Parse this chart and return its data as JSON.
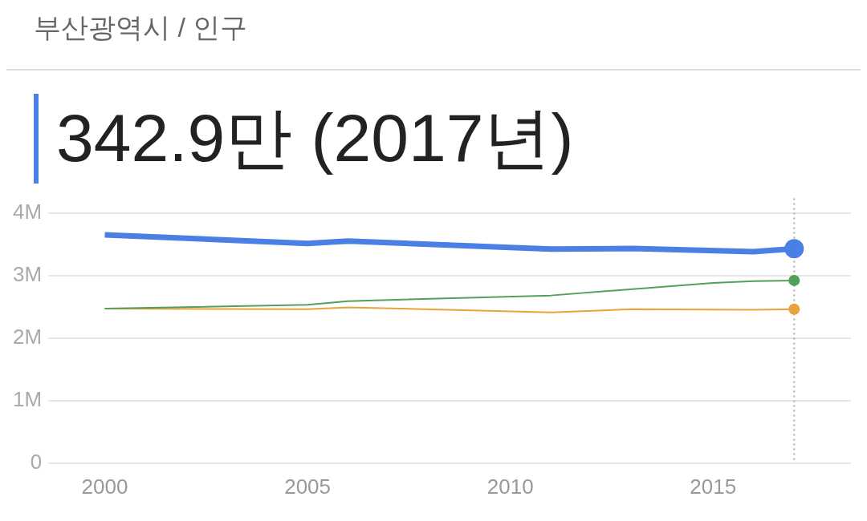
{
  "chart_data": {
    "type": "line",
    "title": "부산광역시 / 인구",
    "subtitle": "342.9만 (2017년)",
    "series": [
      {
        "color": "#4a7fe6",
        "x": [
          2000,
          2005,
          2006,
          2011,
          2013,
          2016,
          2017
        ],
        "values": [
          3650000,
          3510000,
          3550000,
          3420000,
          3430000,
          3380000,
          3429000
        ]
      },
      {
        "color": "#53a05a",
        "x": [
          2000,
          2005,
          2006,
          2011,
          2015,
          2016,
          2017
        ],
        "values": [
          2470000,
          2530000,
          2590000,
          2680000,
          2880000,
          2910000,
          2920000
        ]
      },
      {
        "color": "#e8a33a",
        "x": [
          2000,
          2005,
          2006,
          2011,
          2013,
          2016,
          2017
        ],
        "values": [
          2470000,
          2460000,
          2490000,
          2410000,
          2460000,
          2450000,
          2460000
        ]
      }
    ],
    "xlim": [
      1999.2,
      2018.4
    ],
    "xticks": [
      2000,
      2005,
      2010,
      2015
    ],
    "ylim": [
      0,
      4000000
    ],
    "yticks": [
      {
        "value": 0,
        "label": "0"
      },
      {
        "value": 1000000,
        "label": "1M"
      },
      {
        "value": 2000000,
        "label": "2M"
      },
      {
        "value": 3000000,
        "label": "3M"
      },
      {
        "value": 4000000,
        "label": "4M"
      }
    ],
    "grid": "y",
    "legend": false,
    "ref_lines": [
      {
        "axis": "x",
        "value": 2017,
        "color": "#aaaaaa",
        "line_style": "dotted"
      }
    ]
  }
}
